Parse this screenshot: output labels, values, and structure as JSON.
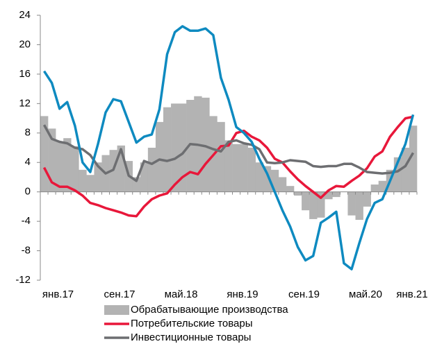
{
  "chart_data": {
    "type": "combo",
    "categories": [
      "янв.17",
      null,
      null,
      null,
      null,
      null,
      null,
      null,
      "сен.17",
      null,
      null,
      null,
      null,
      null,
      null,
      null,
      "май.18",
      null,
      null,
      null,
      null,
      null,
      null,
      null,
      "янв.19",
      null,
      null,
      null,
      null,
      null,
      null,
      null,
      "сен.19",
      null,
      null,
      null,
      null,
      null,
      null,
      null,
      "май.20",
      null,
      null,
      null,
      null,
      null,
      null,
      null,
      "янв.21"
    ],
    "series": [
      {
        "name": "Обрабатывающие производства",
        "type": "bar",
        "color": "#b3b3b3",
        "values": [
          10.3,
          8.6,
          6.8,
          7.3,
          6.2,
          3.0,
          2.3,
          4.0,
          5.0,
          5.7,
          6.3,
          4.2,
          2.0,
          4.0,
          6.0,
          9.5,
          11.5,
          12.0,
          12.0,
          12.5,
          13.0,
          12.8,
          10.3,
          9.5,
          7.0,
          6.5,
          6.5,
          6.0,
          4.0,
          3.5,
          3.0,
          2.0,
          0.8,
          -0.5,
          -2.5,
          -3.7,
          -3.5,
          -1.0,
          -0.7,
          0,
          -3.2,
          -3.8,
          -2.0,
          1.0,
          1.5,
          3.0,
          4.7,
          6.0,
          9.0
        ]
      },
      {
        "name": "Потребительские товары",
        "type": "line",
        "color": "#e8173a",
        "values": [
          3.3,
          1.3,
          0.7,
          0.7,
          0.2,
          -0.5,
          -1.5,
          -1.8,
          -2.2,
          -2.5,
          -2.8,
          -3.2,
          -3.3,
          -2.0,
          -1.0,
          -0.5,
          -0.2,
          1.0,
          2.0,
          2.7,
          2.4,
          3.8,
          5.0,
          6.2,
          6.3,
          8.0,
          8.3,
          7.5,
          7.0,
          6.0,
          4.5,
          4.0,
          2.8,
          1.7,
          0.8,
          0,
          -0.8,
          0.2,
          0.8,
          0.7,
          1.5,
          2.2,
          3.2,
          4.8,
          5.5,
          7.5,
          8.8,
          10.0,
          10.2
        ]
      },
      {
        "name": "Инвестиционные товары",
        "type": "line",
        "color": "#6d6e71",
        "values": [
          9.1,
          7.2,
          6.8,
          6.6,
          6.0,
          5.8,
          5.0,
          3.5,
          2.5,
          3.0,
          5.8,
          2.2,
          1.5,
          4.2,
          3.8,
          4.4,
          4.2,
          4.5,
          5.2,
          6.5,
          6.4,
          6.2,
          5.8,
          5.5,
          6.8,
          7.0,
          6.6,
          6.4,
          5.8,
          4.0,
          3.9,
          4.0,
          4.3,
          4.2,
          4.1,
          3.5,
          3.4,
          3.5,
          3.5,
          3.8,
          3.8,
          3.3,
          2.7,
          2.6,
          2.5,
          2.6,
          2.8,
          3.5,
          5.3
        ]
      },
      {
        "type": "line",
        "color": "#0e8ac0",
        "values": [
          16.4,
          14.8,
          11.3,
          12.2,
          9.0,
          4.0,
          2.7,
          6.5,
          10.8,
          12.6,
          12.3,
          9.5,
          6.7,
          7.5,
          7.8,
          11.2,
          18.7,
          21.7,
          22.5,
          21.9,
          21.9,
          22.2,
          21.3,
          15.5,
          12.5,
          8.8,
          8.0,
          6.8,
          4.5,
          2.5,
          0,
          -2.5,
          -4.7,
          -7.5,
          -9.3,
          -8.7,
          -4.2,
          -3.5,
          -2.7,
          -9.7,
          -10.5,
          -7.0,
          -3.7,
          -1.5,
          -1.0,
          1.5,
          4.0,
          6.5,
          10.5
        ]
      }
    ],
    "ylim": [
      -12,
      24
    ],
    "yticks": [
      -12,
      -8,
      -4,
      0,
      4,
      8,
      12,
      16,
      20,
      24
    ],
    "grid": false,
    "legend": "bottom"
  }
}
